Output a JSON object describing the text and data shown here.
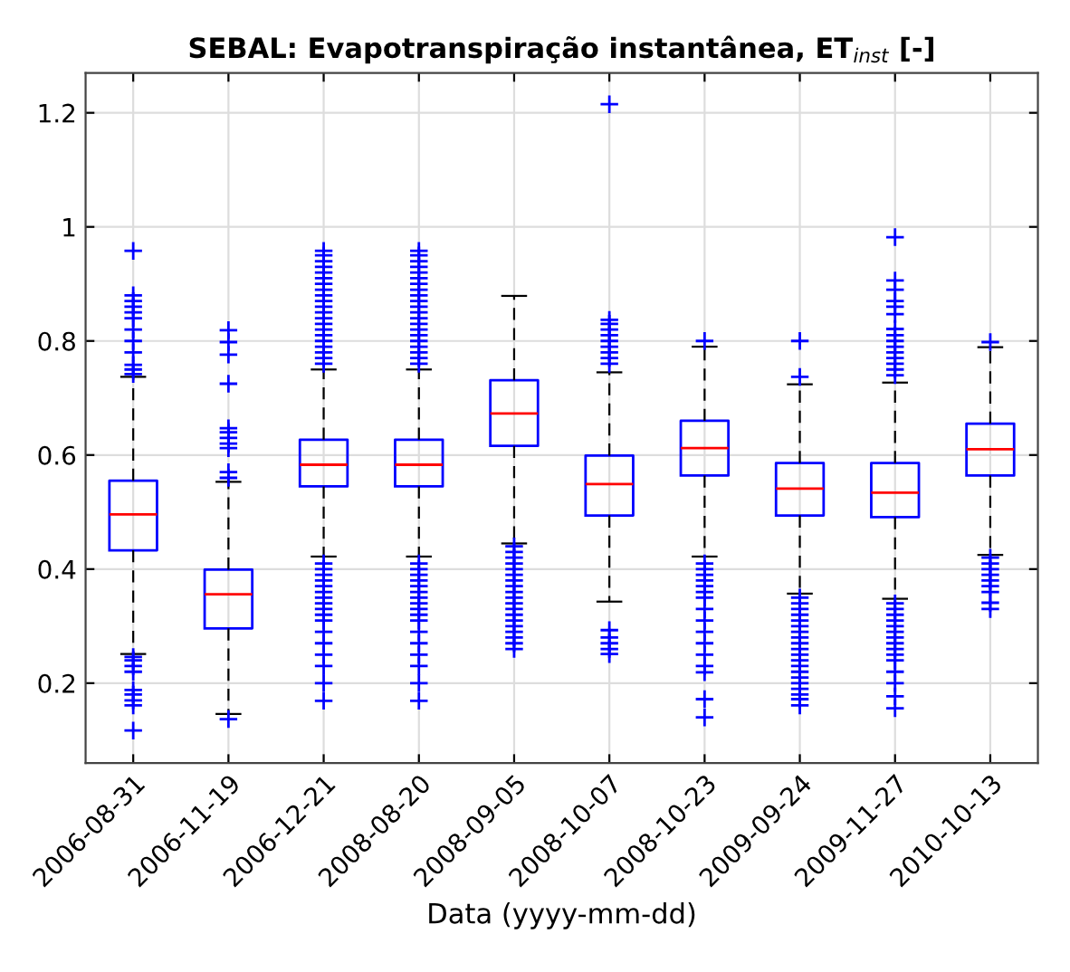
{
  "chart_data": {
    "type": "box",
    "title": "SEBAL: Evapotranspiração instantânea, ET$_{inst}$ [-]",
    "xlabel": "Data (yyyy-mm-dd)",
    "categories": [
      "2006-08-31",
      "2006-11-19",
      "2006-12-21",
      "2008-08-20",
      "2008-09-05",
      "2008-10-07",
      "2008-10-23",
      "2009-09-24",
      "2009-11-27",
      "2010-10-13"
    ],
    "boxes": [
      {
        "low": 0.251,
        "q1": 0.433,
        "median": 0.496,
        "q3": 0.555,
        "high": 0.737,
        "outliers": [
          0.958,
          0.88,
          0.87,
          0.86,
          0.85,
          0.84,
          0.82,
          0.8,
          0.78,
          0.758,
          0.75,
          0.742,
          0.246,
          0.24,
          0.23,
          0.22,
          0.188,
          0.18,
          0.17,
          0.161,
          0.117
        ]
      },
      {
        "low": 0.146,
        "q1": 0.296,
        "median": 0.356,
        "q3": 0.399,
        "high": 0.553,
        "outliers": [
          0.819,
          0.798,
          0.776,
          0.725,
          0.647,
          0.64,
          0.63,
          0.62,
          0.612,
          0.57,
          0.56,
          0.137
        ]
      },
      {
        "low": 0.422,
        "q1": 0.545,
        "median": 0.583,
        "q3": 0.627,
        "high": 0.75,
        "outliers": [
          0.958,
          0.95,
          0.94,
          0.93,
          0.92,
          0.91,
          0.9,
          0.89,
          0.88,
          0.87,
          0.86,
          0.85,
          0.84,
          0.83,
          0.82,
          0.81,
          0.8,
          0.79,
          0.78,
          0.77,
          0.76,
          0.41,
          0.4,
          0.39,
          0.38,
          0.37,
          0.36,
          0.35,
          0.34,
          0.33,
          0.32,
          0.31,
          0.29,
          0.27,
          0.25,
          0.23,
          0.2,
          0.169
        ]
      },
      {
        "low": 0.422,
        "q1": 0.545,
        "median": 0.583,
        "q3": 0.627,
        "high": 0.75,
        "outliers": [
          0.958,
          0.95,
          0.94,
          0.93,
          0.92,
          0.91,
          0.9,
          0.89,
          0.88,
          0.87,
          0.86,
          0.85,
          0.84,
          0.83,
          0.82,
          0.81,
          0.8,
          0.79,
          0.78,
          0.77,
          0.76,
          0.41,
          0.4,
          0.39,
          0.38,
          0.37,
          0.36,
          0.35,
          0.34,
          0.33,
          0.32,
          0.31,
          0.29,
          0.27,
          0.25,
          0.23,
          0.2,
          0.169
        ]
      },
      {
        "low": 0.445,
        "q1": 0.616,
        "median": 0.673,
        "q3": 0.731,
        "high": 0.879,
        "outliers": [
          0.44,
          0.43,
          0.42,
          0.41,
          0.4,
          0.39,
          0.38,
          0.37,
          0.36,
          0.35,
          0.34,
          0.33,
          0.32,
          0.31,
          0.3,
          0.29,
          0.28,
          0.27,
          0.26
        ]
      },
      {
        "low": 0.343,
        "q1": 0.494,
        "median": 0.549,
        "q3": 0.599,
        "high": 0.745,
        "outliers": [
          1.215,
          0.837,
          0.83,
          0.82,
          0.81,
          0.8,
          0.79,
          0.78,
          0.77,
          0.76,
          0.293,
          0.28,
          0.27,
          0.26,
          0.251
        ]
      },
      {
        "low": 0.422,
        "q1": 0.564,
        "median": 0.612,
        "q3": 0.66,
        "high": 0.79,
        "outliers": [
          0.8,
          0.41,
          0.4,
          0.39,
          0.38,
          0.37,
          0.36,
          0.35,
          0.33,
          0.31,
          0.29,
          0.27,
          0.25,
          0.23,
          0.219,
          0.172,
          0.14
        ]
      },
      {
        "low": 0.357,
        "q1": 0.494,
        "median": 0.541,
        "q3": 0.586,
        "high": 0.724,
        "outliers": [
          0.8,
          0.737,
          0.35,
          0.34,
          0.33,
          0.32,
          0.31,
          0.3,
          0.29,
          0.28,
          0.27,
          0.26,
          0.25,
          0.24,
          0.23,
          0.22,
          0.21,
          0.2,
          0.19,
          0.18,
          0.172,
          0.161
        ]
      },
      {
        "low": 0.348,
        "q1": 0.491,
        "median": 0.534,
        "q3": 0.586,
        "high": 0.727,
        "outliers": [
          0.982,
          0.906,
          0.89,
          0.87,
          0.86,
          0.847,
          0.821,
          0.81,
          0.8,
          0.79,
          0.78,
          0.77,
          0.76,
          0.75,
          0.74,
          0.34,
          0.33,
          0.32,
          0.31,
          0.3,
          0.29,
          0.28,
          0.27,
          0.26,
          0.25,
          0.24,
          0.22,
          0.2,
          0.177,
          0.156
        ]
      },
      {
        "low": 0.425,
        "q1": 0.564,
        "median": 0.61,
        "q3": 0.655,
        "high": 0.789,
        "outliers": [
          0.798,
          0.42,
          0.41,
          0.4,
          0.39,
          0.38,
          0.37,
          0.36,
          0.341,
          0.33
        ]
      }
    ],
    "color": "#0000ff",
    "marker": "cross",
    "grid": true,
    "ylim": [
      0.06,
      1.27
    ],
    "yticks": [
      0.2,
      0.4,
      0.6,
      0.8,
      1,
      1.2
    ]
  }
}
